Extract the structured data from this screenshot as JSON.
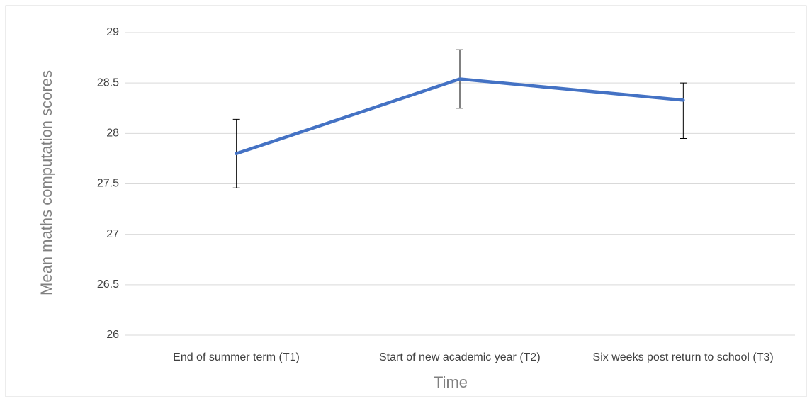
{
  "chart_data": {
    "type": "line",
    "x_label": "Time",
    "y_label": "Mean maths computation scores",
    "categories": [
      "End of summer term (T1)",
      "Start of new academic year (T2)",
      "Six weeks post return to school (T3)"
    ],
    "series": [
      {
        "color": "#4472c4",
        "values": [
          27.8,
          28.54,
          28.33
        ],
        "error_plus": [
          0.34,
          0.29,
          0.17
        ],
        "error_minus": [
          0.34,
          0.29,
          0.38
        ]
      }
    ],
    "ylim": [
      26,
      29
    ],
    "yticks": [
      26,
      26.5,
      27,
      27.5,
      28,
      28.5,
      29
    ],
    "grid": true
  }
}
